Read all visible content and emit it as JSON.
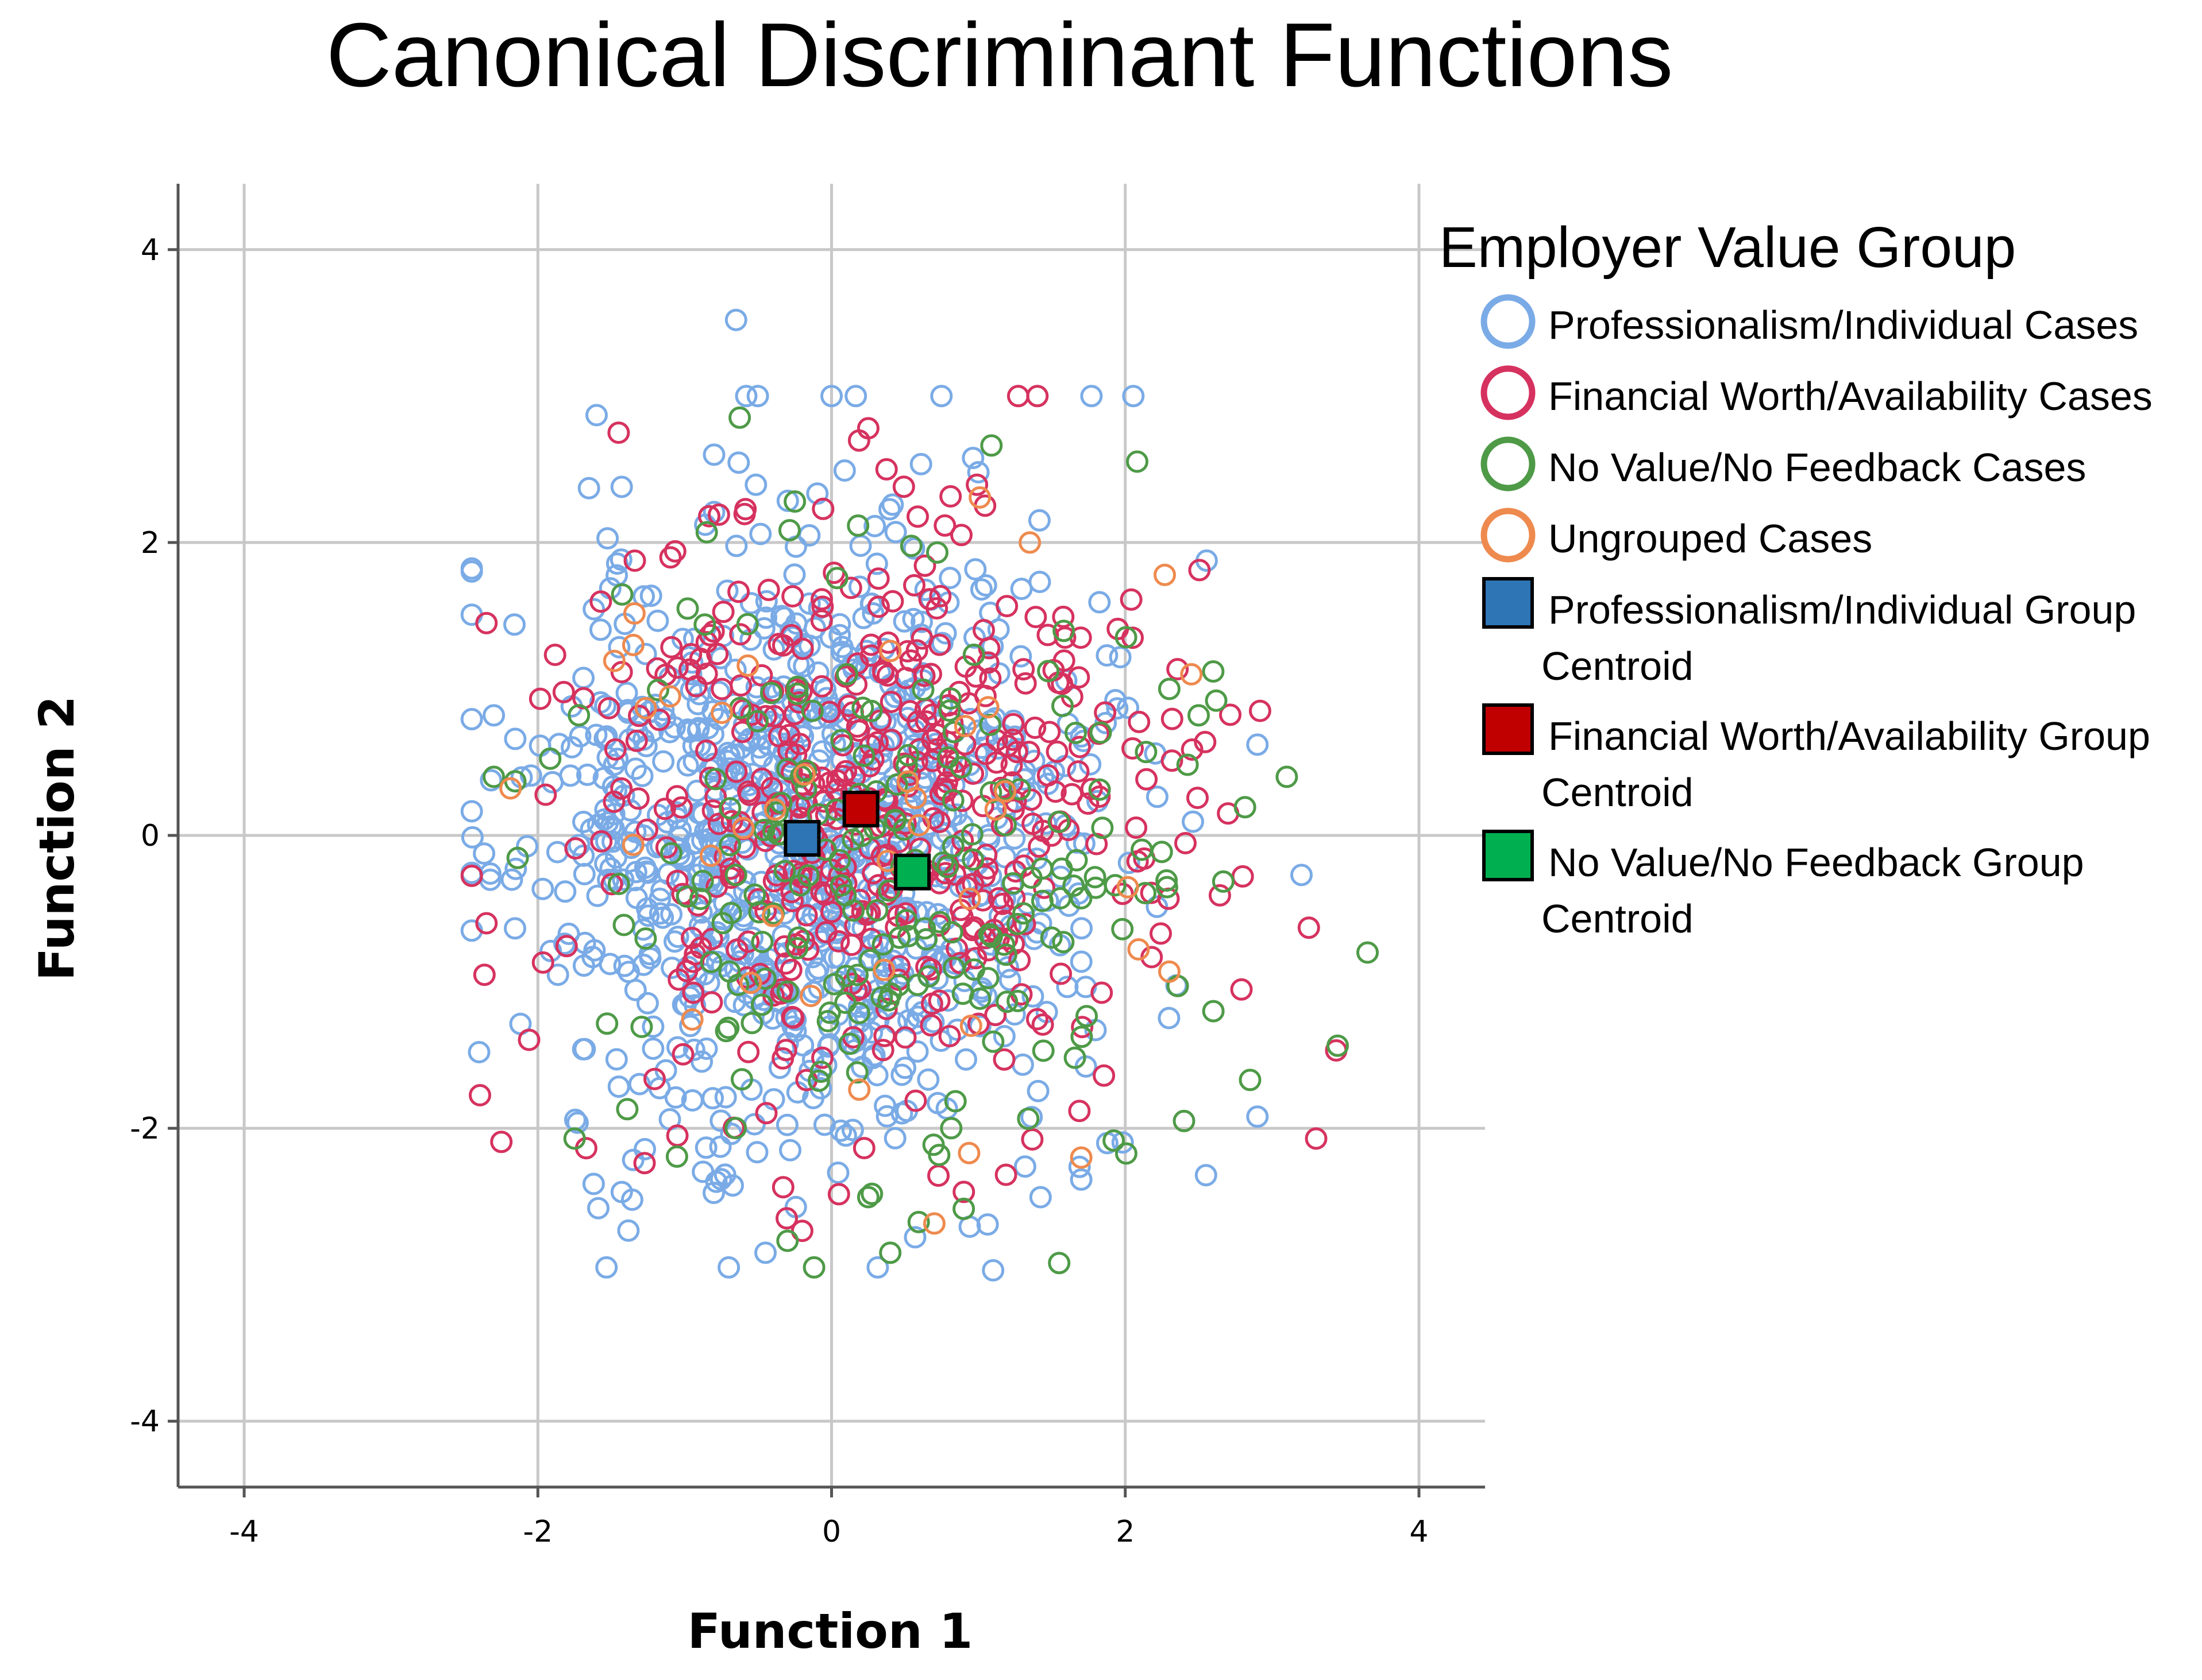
{
  "chart_data": {
    "type": "scatter",
    "title": "Canonical Discriminant Functions",
    "xlabel": "Function 1",
    "ylabel": "Function 2",
    "xlim": [
      -4.45,
      4.45
    ],
    "ylim": [
      -4.45,
      4.45
    ],
    "xticks": [
      -4,
      -2,
      0,
      2,
      4
    ],
    "yticks": [
      -4,
      -2,
      0,
      2,
      4
    ],
    "xtick_labels": [
      "-4",
      "-2",
      "0",
      "2",
      "4"
    ],
    "ytick_labels": [
      "-4",
      "-2",
      "0",
      "2",
      "4"
    ],
    "grid": true,
    "legend_title": "Employer Value Group",
    "legend_position": "right",
    "series": [
      {
        "name": "Professionalism/Individual Cases",
        "marker": "open-circle",
        "color": "#7AABE6",
        "count": 900,
        "mean": [
          -0.2,
          0.0
        ],
        "spread": [
          0.95,
          1.05
        ],
        "seed": 11,
        "points": [
          [
            -0.65,
            3.52
          ],
          [
            0.0,
            3.0
          ],
          [
            -1.6,
            2.87
          ],
          [
            -0.8,
            2.6
          ],
          [
            1.0,
            2.48
          ],
          [
            -2.3,
            0.82
          ],
          [
            -2.45,
            -0.65
          ],
          [
            -2.4,
            -1.48
          ],
          [
            3.2,
            -0.27
          ],
          [
            2.9,
            0.62
          ],
          [
            2.9,
            -1.92
          ],
          [
            2.55,
            -2.32
          ],
          [
            1.7,
            -2.35
          ],
          [
            1.1,
            -2.97
          ],
          [
            -0.7,
            -2.95
          ],
          [
            -0.45,
            -2.85
          ]
        ]
      },
      {
        "name": "Financial Worth/Availability Cases",
        "marker": "open-circle",
        "color": "#D6325F",
        "count": 460,
        "mean": [
          0.2,
          0.15
        ],
        "spread": [
          0.95,
          1.0
        ],
        "seed": 23,
        "points": [
          [
            -2.35,
            1.45
          ],
          [
            -2.35,
            -0.6
          ],
          [
            -1.45,
            2.75
          ],
          [
            0.25,
            2.78
          ],
          [
            3.3,
            -2.07
          ],
          [
            3.25,
            -0.63
          ],
          [
            2.7,
            0.15
          ],
          [
            2.8,
            -0.28
          ],
          [
            2.05,
            1.35
          ],
          [
            -0.2,
            -2.7
          ],
          [
            0.05,
            -2.45
          ],
          [
            -1.05,
            -2.05
          ]
        ]
      },
      {
        "name": "No Value/No Feedback Cases",
        "marker": "open-circle",
        "color": "#4E9A47",
        "count": 210,
        "mean": [
          0.55,
          -0.25
        ],
        "spread": [
          1.0,
          1.0
        ],
        "seed": 37,
        "points": [
          [
            3.65,
            -0.8
          ],
          [
            3.1,
            0.4
          ],
          [
            -2.3,
            0.4
          ],
          [
            -1.75,
            -2.07
          ],
          [
            0.4,
            -2.85
          ],
          [
            1.55,
            -2.92
          ],
          [
            0.25,
            -2.47
          ],
          [
            2.4,
            -1.95
          ],
          [
            2.85,
            -1.67
          ],
          [
            2.6,
            -1.2
          ],
          [
            2.5,
            0.82
          ],
          [
            2.3,
            1.0
          ],
          [
            -0.85,
            2.07
          ],
          [
            -0.25,
            2.28
          ],
          [
            0.9,
            -2.55
          ]
        ]
      },
      {
        "name": "Ungrouped Cases",
        "marker": "open-circle",
        "color": "#EE8A4E",
        "count": 30,
        "mean": [
          0.0,
          0.0
        ],
        "spread": [
          1.0,
          1.0
        ],
        "seed": 53,
        "points": [
          [
            1.35,
            2.0
          ],
          [
            2.45,
            1.1
          ],
          [
            0.7,
            -2.65
          ],
          [
            1.7,
            -2.2
          ],
          [
            2.3,
            -0.93
          ],
          [
            -0.6,
            0.05
          ],
          [
            -1.35,
            1.3
          ],
          [
            -1.1,
            0.95
          ],
          [
            0.95,
            -1.3
          ],
          [
            -0.4,
            -0.55
          ]
        ]
      }
    ],
    "centroids": [
      {
        "name": "Professionalism/Individual Group Centroid",
        "marker": "filled-square",
        "color": "#2E75B6",
        "x": -0.2,
        "y": -0.02
      },
      {
        "name": "Financial Worth/Availability Group Centroid",
        "marker": "filled-square",
        "color": "#C00000",
        "x": 0.2,
        "y": 0.18
      },
      {
        "name": "No Value/No Feedback Group Centroid",
        "marker": "filled-square",
        "color": "#00B050",
        "x": 0.55,
        "y": -0.25
      }
    ]
  },
  "legend": {
    "title": "Employer Value Group",
    "items": [
      {
        "kind": "circle",
        "color": "#7AABE6",
        "lines": [
          "Professionalism/Individual Cases"
        ]
      },
      {
        "kind": "circle",
        "color": "#D6325F",
        "lines": [
          "Financial Worth/Availability Cases"
        ]
      },
      {
        "kind": "circle",
        "color": "#4E9A47",
        "lines": [
          "No Value/No Feedback Cases"
        ]
      },
      {
        "kind": "circle",
        "color": "#EE8A4E",
        "lines": [
          "Ungrouped Cases"
        ]
      },
      {
        "kind": "square",
        "color": "#2E75B6",
        "lines": [
          "Professionalism/Individual Group",
          "Centroid"
        ]
      },
      {
        "kind": "square",
        "color": "#C00000",
        "lines": [
          "Financial Worth/Availability Group",
          "Centroid"
        ]
      },
      {
        "kind": "square",
        "color": "#00B050",
        "lines": [
          "No Value/No Feedback Group",
          "Centroid"
        ]
      }
    ]
  },
  "colors": {
    "grid": "#C8C8C8",
    "axis": "#555555",
    "text": "#000000"
  }
}
